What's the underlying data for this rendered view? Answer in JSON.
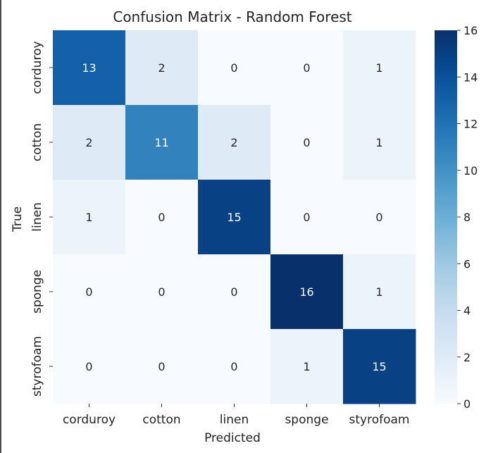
{
  "chart_data": {
    "type": "heatmap",
    "title": "Confusion Matrix - Random Forest",
    "xlabel": "Predicted",
    "ylabel": "True",
    "x_categories": [
      "corduroy",
      "cotton",
      "linen",
      "sponge",
      "styrofoam"
    ],
    "y_categories": [
      "corduroy",
      "cotton",
      "linen",
      "sponge",
      "styrofoam"
    ],
    "values": [
      [
        13,
        2,
        0,
        0,
        1
      ],
      [
        2,
        11,
        2,
        0,
        1
      ],
      [
        1,
        0,
        15,
        0,
        0
      ],
      [
        0,
        0,
        0,
        16,
        1
      ],
      [
        0,
        0,
        0,
        1,
        15
      ]
    ],
    "colorbar": {
      "min": 0,
      "max": 16,
      "ticks": [
        0,
        2,
        4,
        6,
        8,
        10,
        12,
        14,
        16
      ],
      "colormap": "Blues"
    },
    "annotations": true,
    "grid": false
  }
}
